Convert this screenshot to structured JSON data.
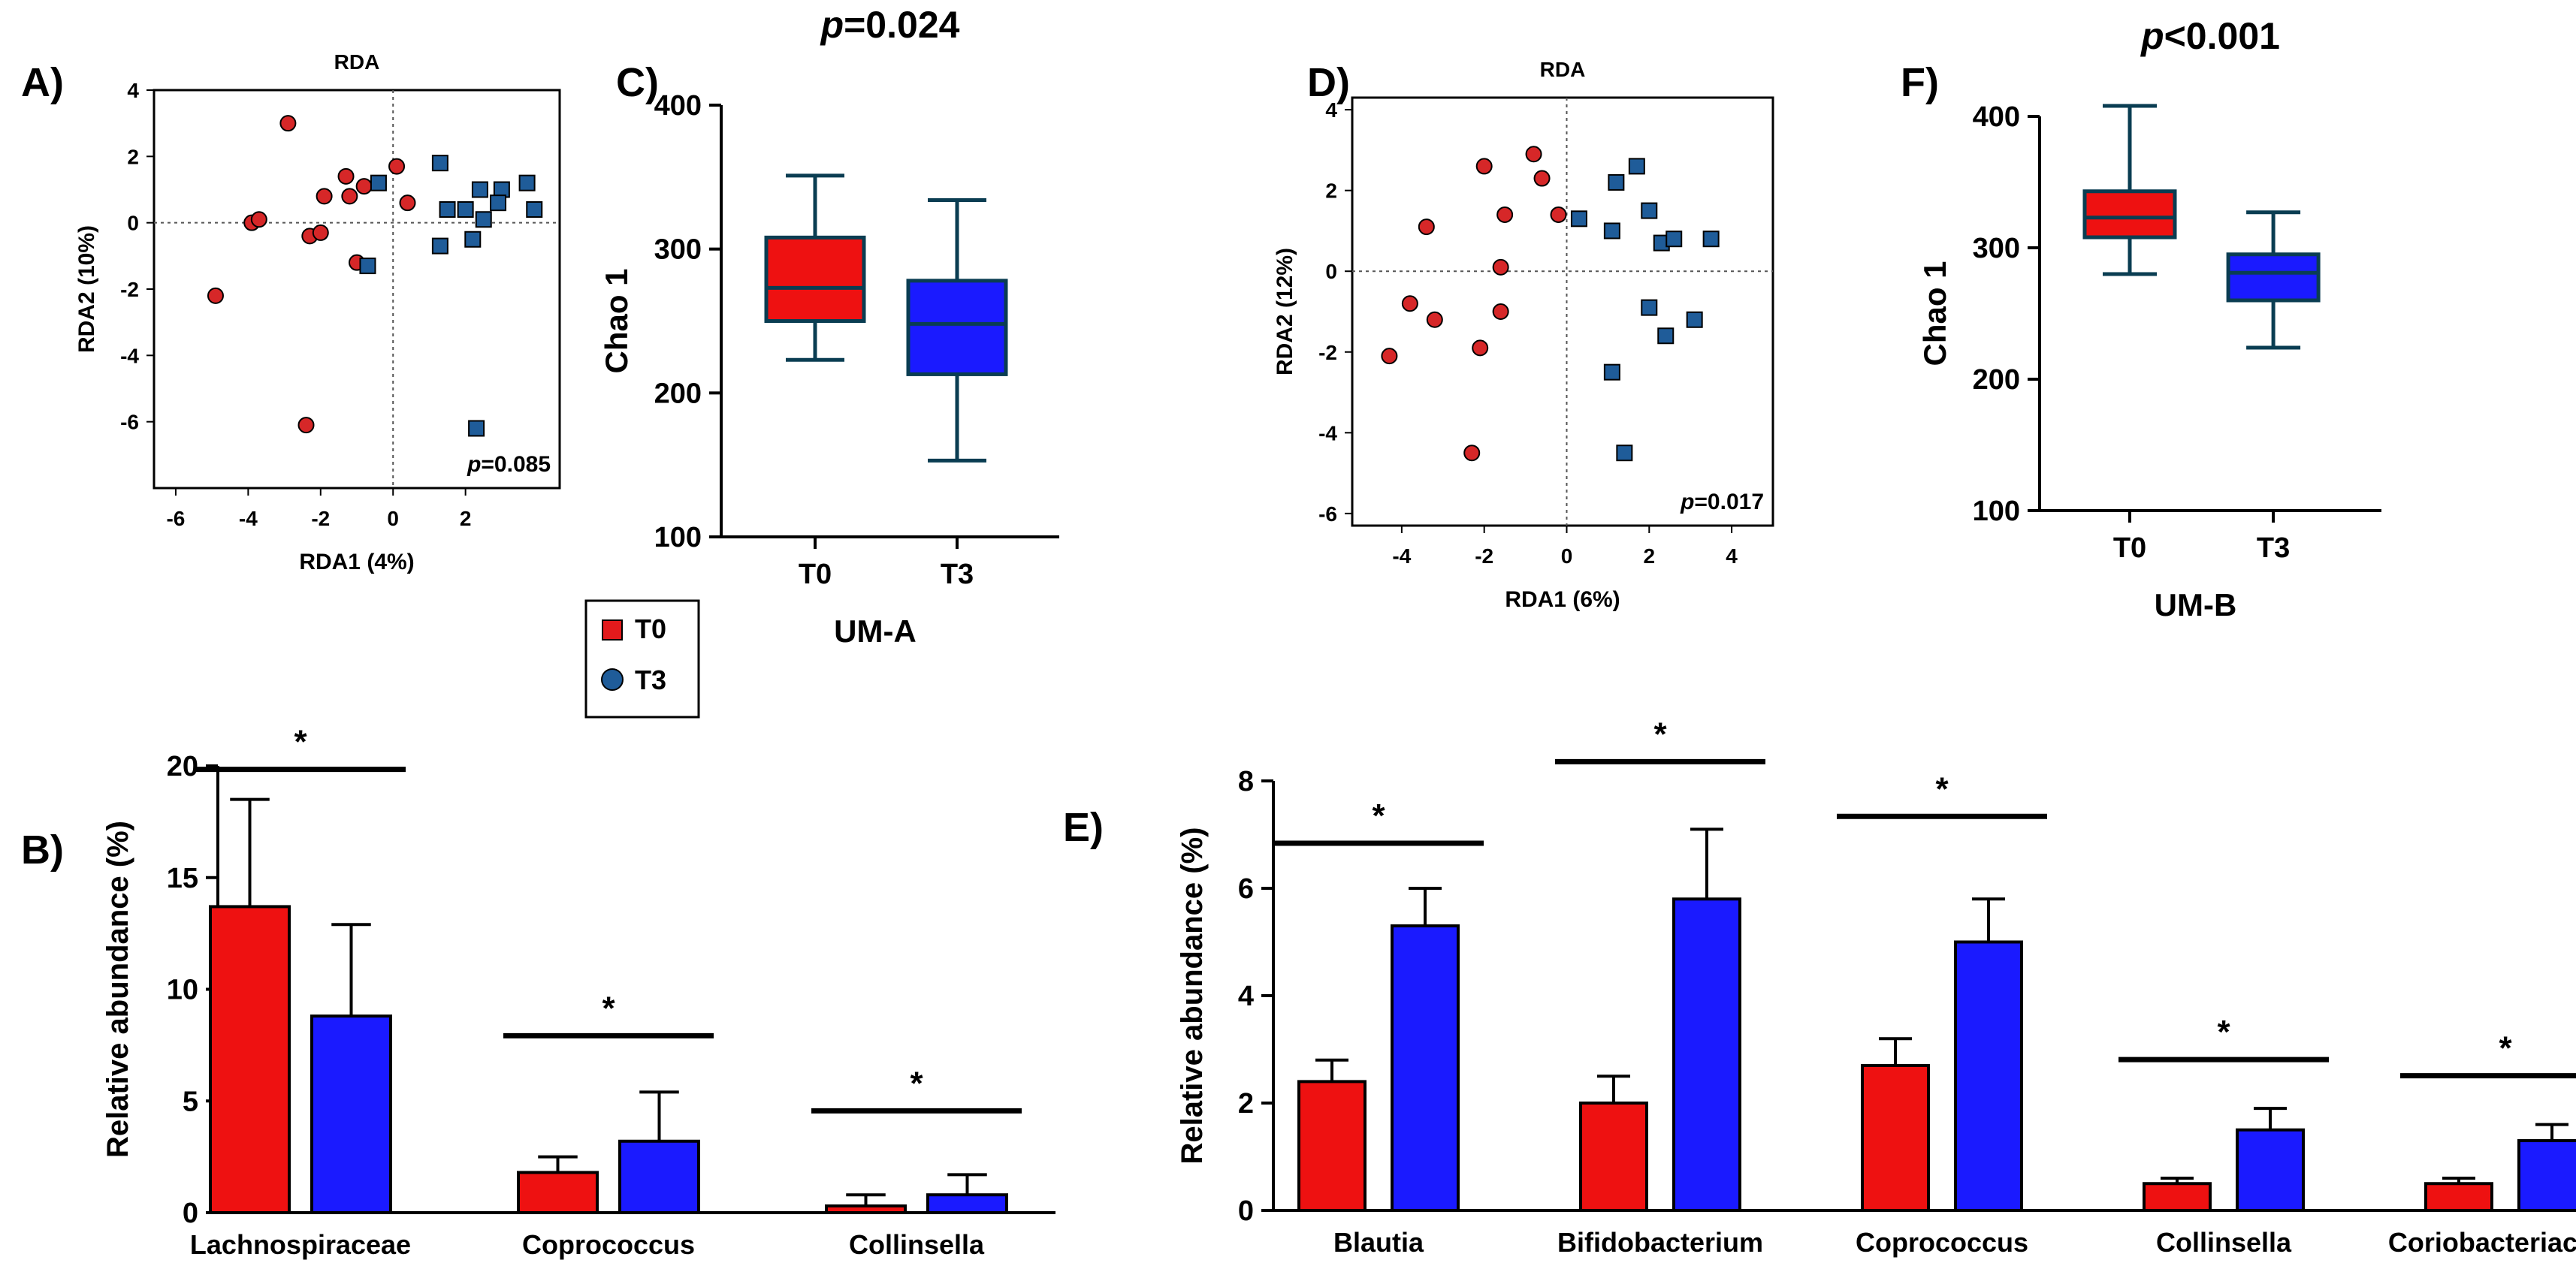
{
  "figure": {
    "panel_labels": {
      "A": "A)",
      "B": "B)",
      "C": "C)",
      "D": "D)",
      "E": "E)",
      "F": "F)"
    },
    "legend": {
      "items": [
        {
          "label": "T0",
          "color": "#e31a1c"
        },
        {
          "label": "T3",
          "color": "#1f5c99"
        }
      ]
    }
  },
  "colors": {
    "t0": "#ee1111",
    "t3": "#1a1aff",
    "t0_point": "#d62728",
    "t3_point": "#1f5c99"
  },
  "chart_data": [
    {
      "id": "A",
      "type": "scatter",
      "title": "RDA",
      "xlabel": "RDA1 (4%)",
      "ylabel": "RDA2 (10%)",
      "xlim": [
        -6.6,
        4.6
      ],
      "ylim": [
        -8,
        4
      ],
      "xticks": [
        -6,
        -4,
        -2,
        0,
        2
      ],
      "yticks": [
        4,
        2,
        0,
        -2,
        -4,
        -6
      ],
      "annotation_prefix": "p",
      "annotation": "=0.085",
      "series": [
        {
          "name": "T0",
          "marker": "circle",
          "points": [
            [
              -2.9,
              3.0
            ],
            [
              -1.9,
              0.8
            ],
            [
              -1.3,
              1.4
            ],
            [
              -0.8,
              1.1
            ],
            [
              0.1,
              1.7
            ],
            [
              -1.2,
              0.8
            ],
            [
              -3.9,
              0.0
            ],
            [
              -3.7,
              0.1
            ],
            [
              -2.3,
              -0.4
            ],
            [
              -2.0,
              -0.3
            ],
            [
              0.4,
              0.6
            ],
            [
              -1.0,
              -1.2
            ],
            [
              -4.9,
              -2.2
            ],
            [
              -2.4,
              -6.1
            ]
          ]
        },
        {
          "name": "T3",
          "marker": "square",
          "points": [
            [
              -0.4,
              1.2
            ],
            [
              1.3,
              1.8
            ],
            [
              1.5,
              0.4
            ],
            [
              2.0,
              0.4
            ],
            [
              2.4,
              1.0
            ],
            [
              3.0,
              1.0
            ],
            [
              3.7,
              1.2
            ],
            [
              2.9,
              0.6
            ],
            [
              3.9,
              0.4
            ],
            [
              2.5,
              0.1
            ],
            [
              2.2,
              -0.5
            ],
            [
              1.3,
              -0.7
            ],
            [
              -0.7,
              -1.3
            ],
            [
              2.3,
              -6.2
            ]
          ]
        }
      ]
    },
    {
      "id": "B",
      "type": "bar",
      "ylabel": "Relative abundance (%)",
      "ylim": [
        0,
        20
      ],
      "yticks": [
        0,
        5,
        10,
        15,
        20
      ],
      "categories": [
        "Lachnospiraceae",
        "Coprococcus",
        "Collinsella"
      ],
      "series": [
        {
          "name": "T0",
          "values": [
            13.7,
            1.8,
            0.3
          ],
          "errors": [
            4.8,
            0.7,
            0.5
          ]
        },
        {
          "name": "T3",
          "values": [
            8.8,
            3.2,
            0.8
          ],
          "errors": [
            4.1,
            2.2,
            0.9
          ]
        }
      ],
      "significance": [
        "*",
        "*",
        "*"
      ]
    },
    {
      "id": "C",
      "type": "box",
      "title_prefix": "p",
      "title": "=0.024",
      "ylabel": "Chao 1",
      "xlabel": "UM-A",
      "ylim": [
        100,
        400
      ],
      "yticks": [
        100,
        200,
        300,
        400
      ],
      "categories": [
        "T0",
        "T3"
      ],
      "boxes": [
        {
          "name": "T0",
          "min": 223,
          "q1": 250,
          "median": 273,
          "q3": 308,
          "max": 351
        },
        {
          "name": "T3",
          "min": 153,
          "q1": 213,
          "median": 248,
          "q3": 278,
          "max": 334
        }
      ]
    },
    {
      "id": "D",
      "type": "scatter",
      "title": "RDA",
      "xlabel": "RDA1 (6%)",
      "ylabel": "RDA2 (12%)",
      "xlim": [
        -5.2,
        5.0
      ],
      "ylim": [
        -6.3,
        4.3
      ],
      "xticks": [
        -4,
        -2,
        0,
        2,
        4
      ],
      "yticks": [
        4,
        2,
        0,
        -2,
        -4,
        -6
      ],
      "annotation_prefix": "p",
      "annotation": "=0.017",
      "series": [
        {
          "name": "T0",
          "marker": "circle",
          "points": [
            [
              -0.8,
              2.9
            ],
            [
              -2.0,
              2.6
            ],
            [
              -0.6,
              2.3
            ],
            [
              -1.5,
              1.4
            ],
            [
              -0.2,
              1.4
            ],
            [
              -3.4,
              1.1
            ],
            [
              -1.6,
              0.1
            ],
            [
              -3.8,
              -0.8
            ],
            [
              -3.2,
              -1.2
            ],
            [
              -1.6,
              -1.0
            ],
            [
              -4.3,
              -2.1
            ],
            [
              -2.1,
              -1.9
            ],
            [
              -2.3,
              -4.5
            ]
          ]
        },
        {
          "name": "T3",
          "marker": "square",
          "points": [
            [
              1.7,
              2.6
            ],
            [
              1.2,
              2.2
            ],
            [
              2.0,
              1.5
            ],
            [
              0.3,
              1.3
            ],
            [
              1.1,
              1.0
            ],
            [
              2.3,
              0.7
            ],
            [
              2.6,
              0.8
            ],
            [
              3.5,
              0.8
            ],
            [
              2.0,
              -0.9
            ],
            [
              3.1,
              -1.2
            ],
            [
              2.4,
              -1.6
            ],
            [
              1.1,
              -2.5
            ],
            [
              1.4,
              -4.5
            ]
          ]
        }
      ]
    },
    {
      "id": "E",
      "type": "bar",
      "ylabel": "Relative abundance (%)",
      "ylim": [
        0,
        8
      ],
      "yticks": [
        0,
        2,
        4,
        6,
        8
      ],
      "categories": [
        "Blautia",
        "Bifidobacterium",
        "Coprococcus",
        "Collinsella",
        "Coriobacteriaceae"
      ],
      "series": [
        {
          "name": "T0",
          "values": [
            2.4,
            2.0,
            2.7,
            0.5,
            0.5
          ],
          "errors": [
            0.4,
            0.5,
            0.5,
            0.1,
            0.1
          ]
        },
        {
          "name": "T3",
          "values": [
            5.3,
            5.8,
            5.0,
            1.5,
            1.3
          ],
          "errors": [
            0.7,
            1.3,
            0.8,
            0.4,
            0.3
          ]
        }
      ],
      "significance": [
        "*",
        "*",
        "*",
        "*",
        "*"
      ]
    },
    {
      "id": "F",
      "type": "box",
      "title_prefix": "p",
      "title": "<0.001",
      "ylabel": "Chao 1",
      "xlabel": "UM-B",
      "ylim": [
        100,
        400
      ],
      "yticks": [
        100,
        200,
        300,
        400
      ],
      "categories": [
        "T0",
        "T3"
      ],
      "boxes": [
        {
          "name": "T0",
          "min": 280,
          "q1": 308,
          "median": 323,
          "q3": 343,
          "max": 408
        },
        {
          "name": "T3",
          "min": 224,
          "q1": 260,
          "median": 281,
          "q3": 295,
          "max": 327
        }
      ]
    }
  ]
}
